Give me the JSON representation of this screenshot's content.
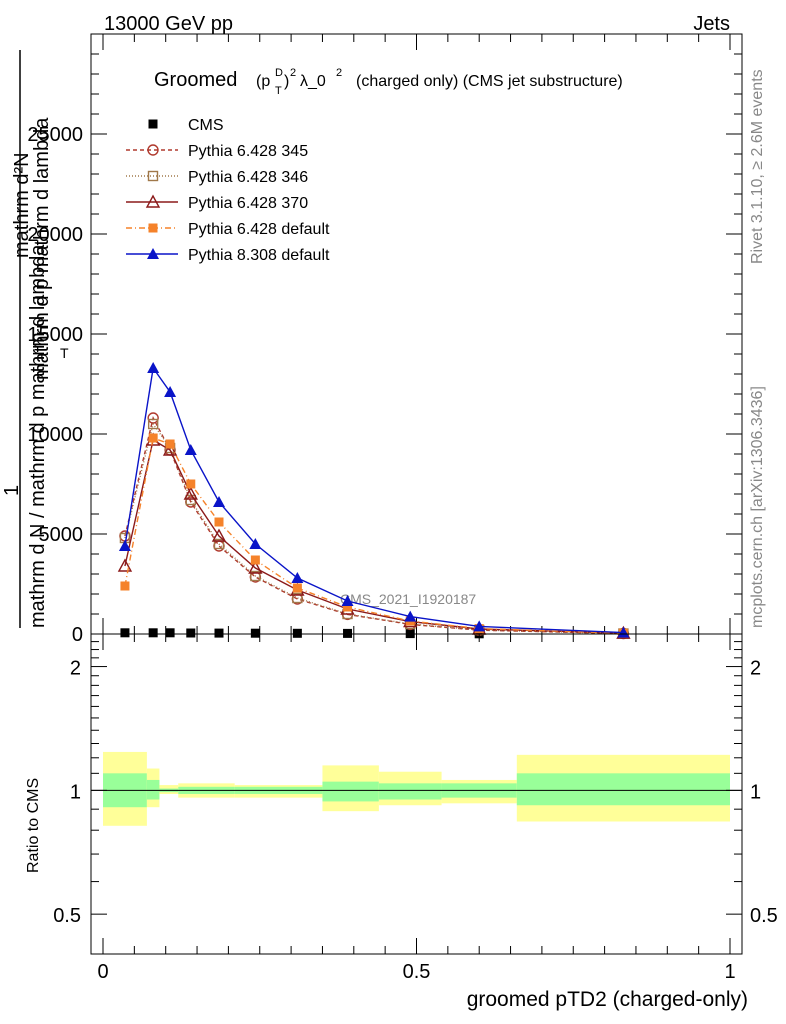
{
  "header": {
    "left": "13000 GeV pp",
    "right": "Jets"
  },
  "side_labels": {
    "top": "Rivet 3.1.10, ≥ 2.6M events",
    "bottom": "mcplots.cern.ch [arXiv:1306.3436]"
  },
  "watermark": "CMS_2021_I1920187",
  "chart_data": [
    {
      "type": "line",
      "title_main": "Groomed",
      "title_formula_p": "(p",
      "title_formula_sub": "T",
      "title_formula_sup_D": "D",
      "title_formula_close": ")",
      "title_formula_sup2": "2",
      "title_formula_rest": "λ_0",
      "title_formula_sup3": "2",
      "title_suffix": "(charged only) (CMS jet substructure)",
      "ylabel_top": "1",
      "ylabel_num": "mathrm d²N",
      "ylabel_den": "mathrm d p_T mathrm d lambda",
      "ylabel_lines": [
        "mathrm d²N",
        "mathrm d p mathrm d lambda",
        "mathrm d N / mathrm d p mathrm d lambda",
        "mathrm d N / mathrm d p mathrm d lambda"
      ],
      "ylabel_display": [
        "mathrm d",
        "N",
        "mathrm d p",
        "mathrm d lambda",
        "1",
        "mathrm d N / mathrm d p",
        "mathrm d lambda",
        "T"
      ],
      "xlim": [
        0,
        1
      ],
      "ylim": [
        0,
        30000
      ],
      "yticks": [
        0,
        5000,
        10000,
        15000,
        20000,
        25000
      ],
      "ytick_labels": [
        "0",
        "5000",
        "10000",
        "15000",
        "20000",
        "25000"
      ],
      "x": [
        0.035,
        0.08,
        0.107,
        0.14,
        0.185,
        0.243,
        0.31,
        0.39,
        0.49,
        0.6,
        0.83
      ],
      "series": [
        {
          "name": "CMS",
          "color": "#000000",
          "marker": "square",
          "values": [
            60,
            60,
            60,
            50,
            45,
            40,
            35,
            30,
            20,
            10,
            5
          ]
        },
        {
          "name": "Pythia 6.428 345",
          "color": "#b03a2e",
          "marker": "circle-open",
          "dash": "4,3",
          "values": [
            4900,
            10800,
            9200,
            6600,
            4400,
            2850,
            1750,
            980,
            480,
            190,
            25
          ]
        },
        {
          "name": "Pythia 6.428 346",
          "color": "#a0784a",
          "marker": "square-open",
          "dash": "1,2",
          "values": [
            4800,
            10500,
            9300,
            6700,
            4500,
            2900,
            1800,
            1000,
            500,
            200,
            25
          ]
        },
        {
          "name": "Pythia 6.428 370",
          "color": "#8b1a1a",
          "marker": "triangle-open",
          "dash": "",
          "values": [
            3400,
            9700,
            9200,
            7000,
            4900,
            3300,
            2200,
            1250,
            620,
            250,
            40
          ]
        },
        {
          "name": "Pythia 6.428 default",
          "color": "#f5822a",
          "marker": "square",
          "dash": "6,3,1,3",
          "values": [
            2400,
            9800,
            9500,
            7500,
            5600,
            3700,
            2300,
            1350,
            650,
            270,
            40
          ]
        },
        {
          "name": "Pythia 8.308 default",
          "color": "#0a14c8",
          "marker": "triangle",
          "dash": "",
          "values": [
            4400,
            13300,
            12100,
            9200,
            6600,
            4500,
            2800,
            1650,
            870,
            380,
            70
          ]
        }
      ]
    },
    {
      "type": "area",
      "ylabel": "Ratio to CMS",
      "xlabel": "groomed pTD2 (charged-only)",
      "xlim": [
        0,
        1
      ],
      "ylim": [
        0.4,
        2.4
      ],
      "scale": "log",
      "yticks": [
        0.5,
        1,
        2
      ],
      "ytick_labels": [
        "0.5",
        "1",
        "2"
      ],
      "xticks": [
        0,
        0.5,
        1
      ],
      "xtick_labels": [
        "0",
        "0.5",
        "1"
      ],
      "ratio_line": 1,
      "bins": [
        {
          "lo": 0.0,
          "hi": 0.07,
          "stat_lo": 0.91,
          "stat_hi": 1.1,
          "tot_lo": 0.82,
          "tot_hi": 1.24
        },
        {
          "lo": 0.07,
          "hi": 0.09,
          "stat_lo": 0.95,
          "stat_hi": 1.06,
          "tot_lo": 0.91,
          "tot_hi": 1.13
        },
        {
          "lo": 0.09,
          "hi": 0.12,
          "stat_lo": 0.99,
          "stat_hi": 1.01,
          "tot_lo": 0.98,
          "tot_hi": 1.03
        },
        {
          "lo": 0.12,
          "hi": 0.21,
          "stat_lo": 0.98,
          "stat_hi": 1.02,
          "tot_lo": 0.96,
          "tot_hi": 1.04
        },
        {
          "lo": 0.21,
          "hi": 0.35,
          "stat_lo": 0.98,
          "stat_hi": 1.02,
          "tot_lo": 0.96,
          "tot_hi": 1.03
        },
        {
          "lo": 0.35,
          "hi": 0.44,
          "stat_lo": 0.94,
          "stat_hi": 1.05,
          "tot_lo": 0.89,
          "tot_hi": 1.15
        },
        {
          "lo": 0.44,
          "hi": 0.54,
          "stat_lo": 0.95,
          "stat_hi": 1.04,
          "tot_lo": 0.92,
          "tot_hi": 1.11
        },
        {
          "lo": 0.54,
          "hi": 0.66,
          "stat_lo": 0.96,
          "stat_hi": 1.04,
          "tot_lo": 0.93,
          "tot_hi": 1.06
        },
        {
          "lo": 0.66,
          "hi": 1.0,
          "stat_lo": 0.92,
          "stat_hi": 1.1,
          "tot_lo": 0.84,
          "tot_hi": 1.22
        }
      ],
      "colors": {
        "stat": "#99ff99",
        "total": "#ffff99"
      }
    }
  ]
}
